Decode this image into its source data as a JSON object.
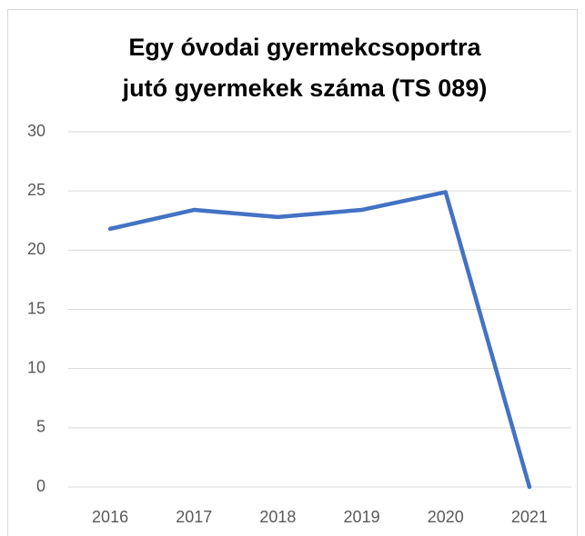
{
  "chart_data": {
    "type": "line",
    "title": "Egy óvodai gyermekcsoportra jutó gyermekek száma (TS 089)",
    "categories": [
      "2016",
      "2017",
      "2018",
      "2019",
      "2020",
      "2021"
    ],
    "series": [
      {
        "name": "Egy óvodai gyermekcsoportra jutó gyermekek száma",
        "color": "#4472c4",
        "values": [
          21.8,
          23.4,
          22.8,
          23.4,
          24.9,
          0
        ]
      }
    ],
    "ylim": [
      0,
      30
    ],
    "yticks": [
      0,
      5,
      10,
      15,
      20,
      25,
      30
    ],
    "grid": true,
    "legend": false
  }
}
